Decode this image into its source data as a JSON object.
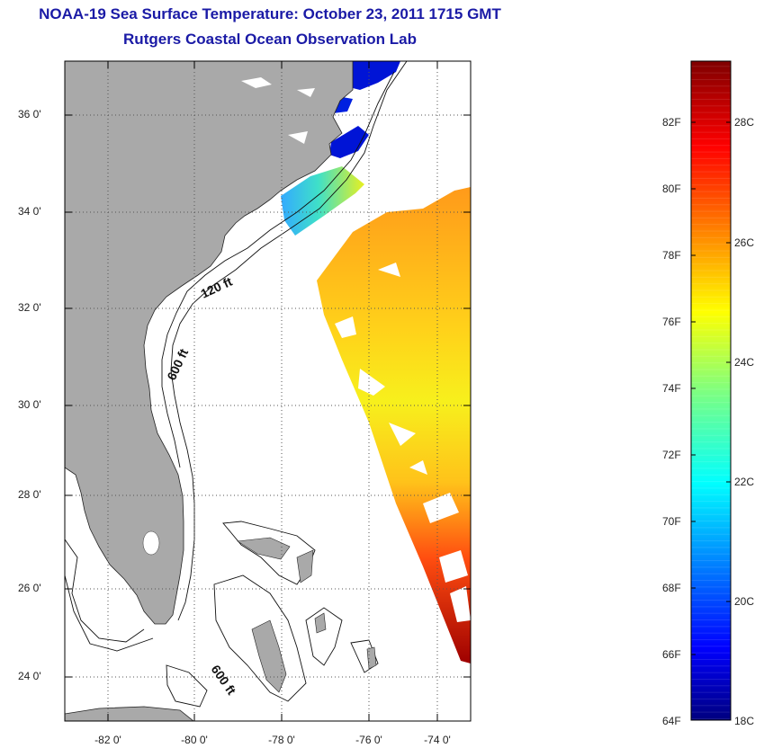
{
  "header": {
    "title": "NOAA-19 Sea Surface Temperature:  October 23, 2011 1715 GMT",
    "subtitle": "Rutgers Coastal Ocean Observation Lab"
  },
  "map": {
    "lon_range": [
      -83.0,
      -73.0
    ],
    "lat_range": [
      23.0,
      37.0
    ],
    "lat_ticks": [
      "36 0'",
      "34 0'",
      "32 0'",
      "30 0'",
      "28 0'",
      "26 0'",
      "24 0'"
    ],
    "lon_ticks": [
      "-82 0'",
      "-80 0'",
      "-78 0'",
      "-76 0'",
      "-74 0'"
    ],
    "grid": "dotted",
    "land_color": "#a9a9a9",
    "contour_labels": [
      "120 ft",
      "600 ft",
      "600 ft"
    ]
  },
  "colorbar": {
    "fahrenheit_labels": [
      "82F",
      "80F",
      "78F",
      "76F",
      "74F",
      "72F",
      "70F",
      "68F",
      "66F",
      "64F"
    ],
    "celsius_labels": [
      "28C",
      "26C",
      "24C",
      "22C",
      "20C",
      "18C"
    ],
    "range_c": [
      18,
      29.5
    ],
    "colormap": "jet"
  }
}
